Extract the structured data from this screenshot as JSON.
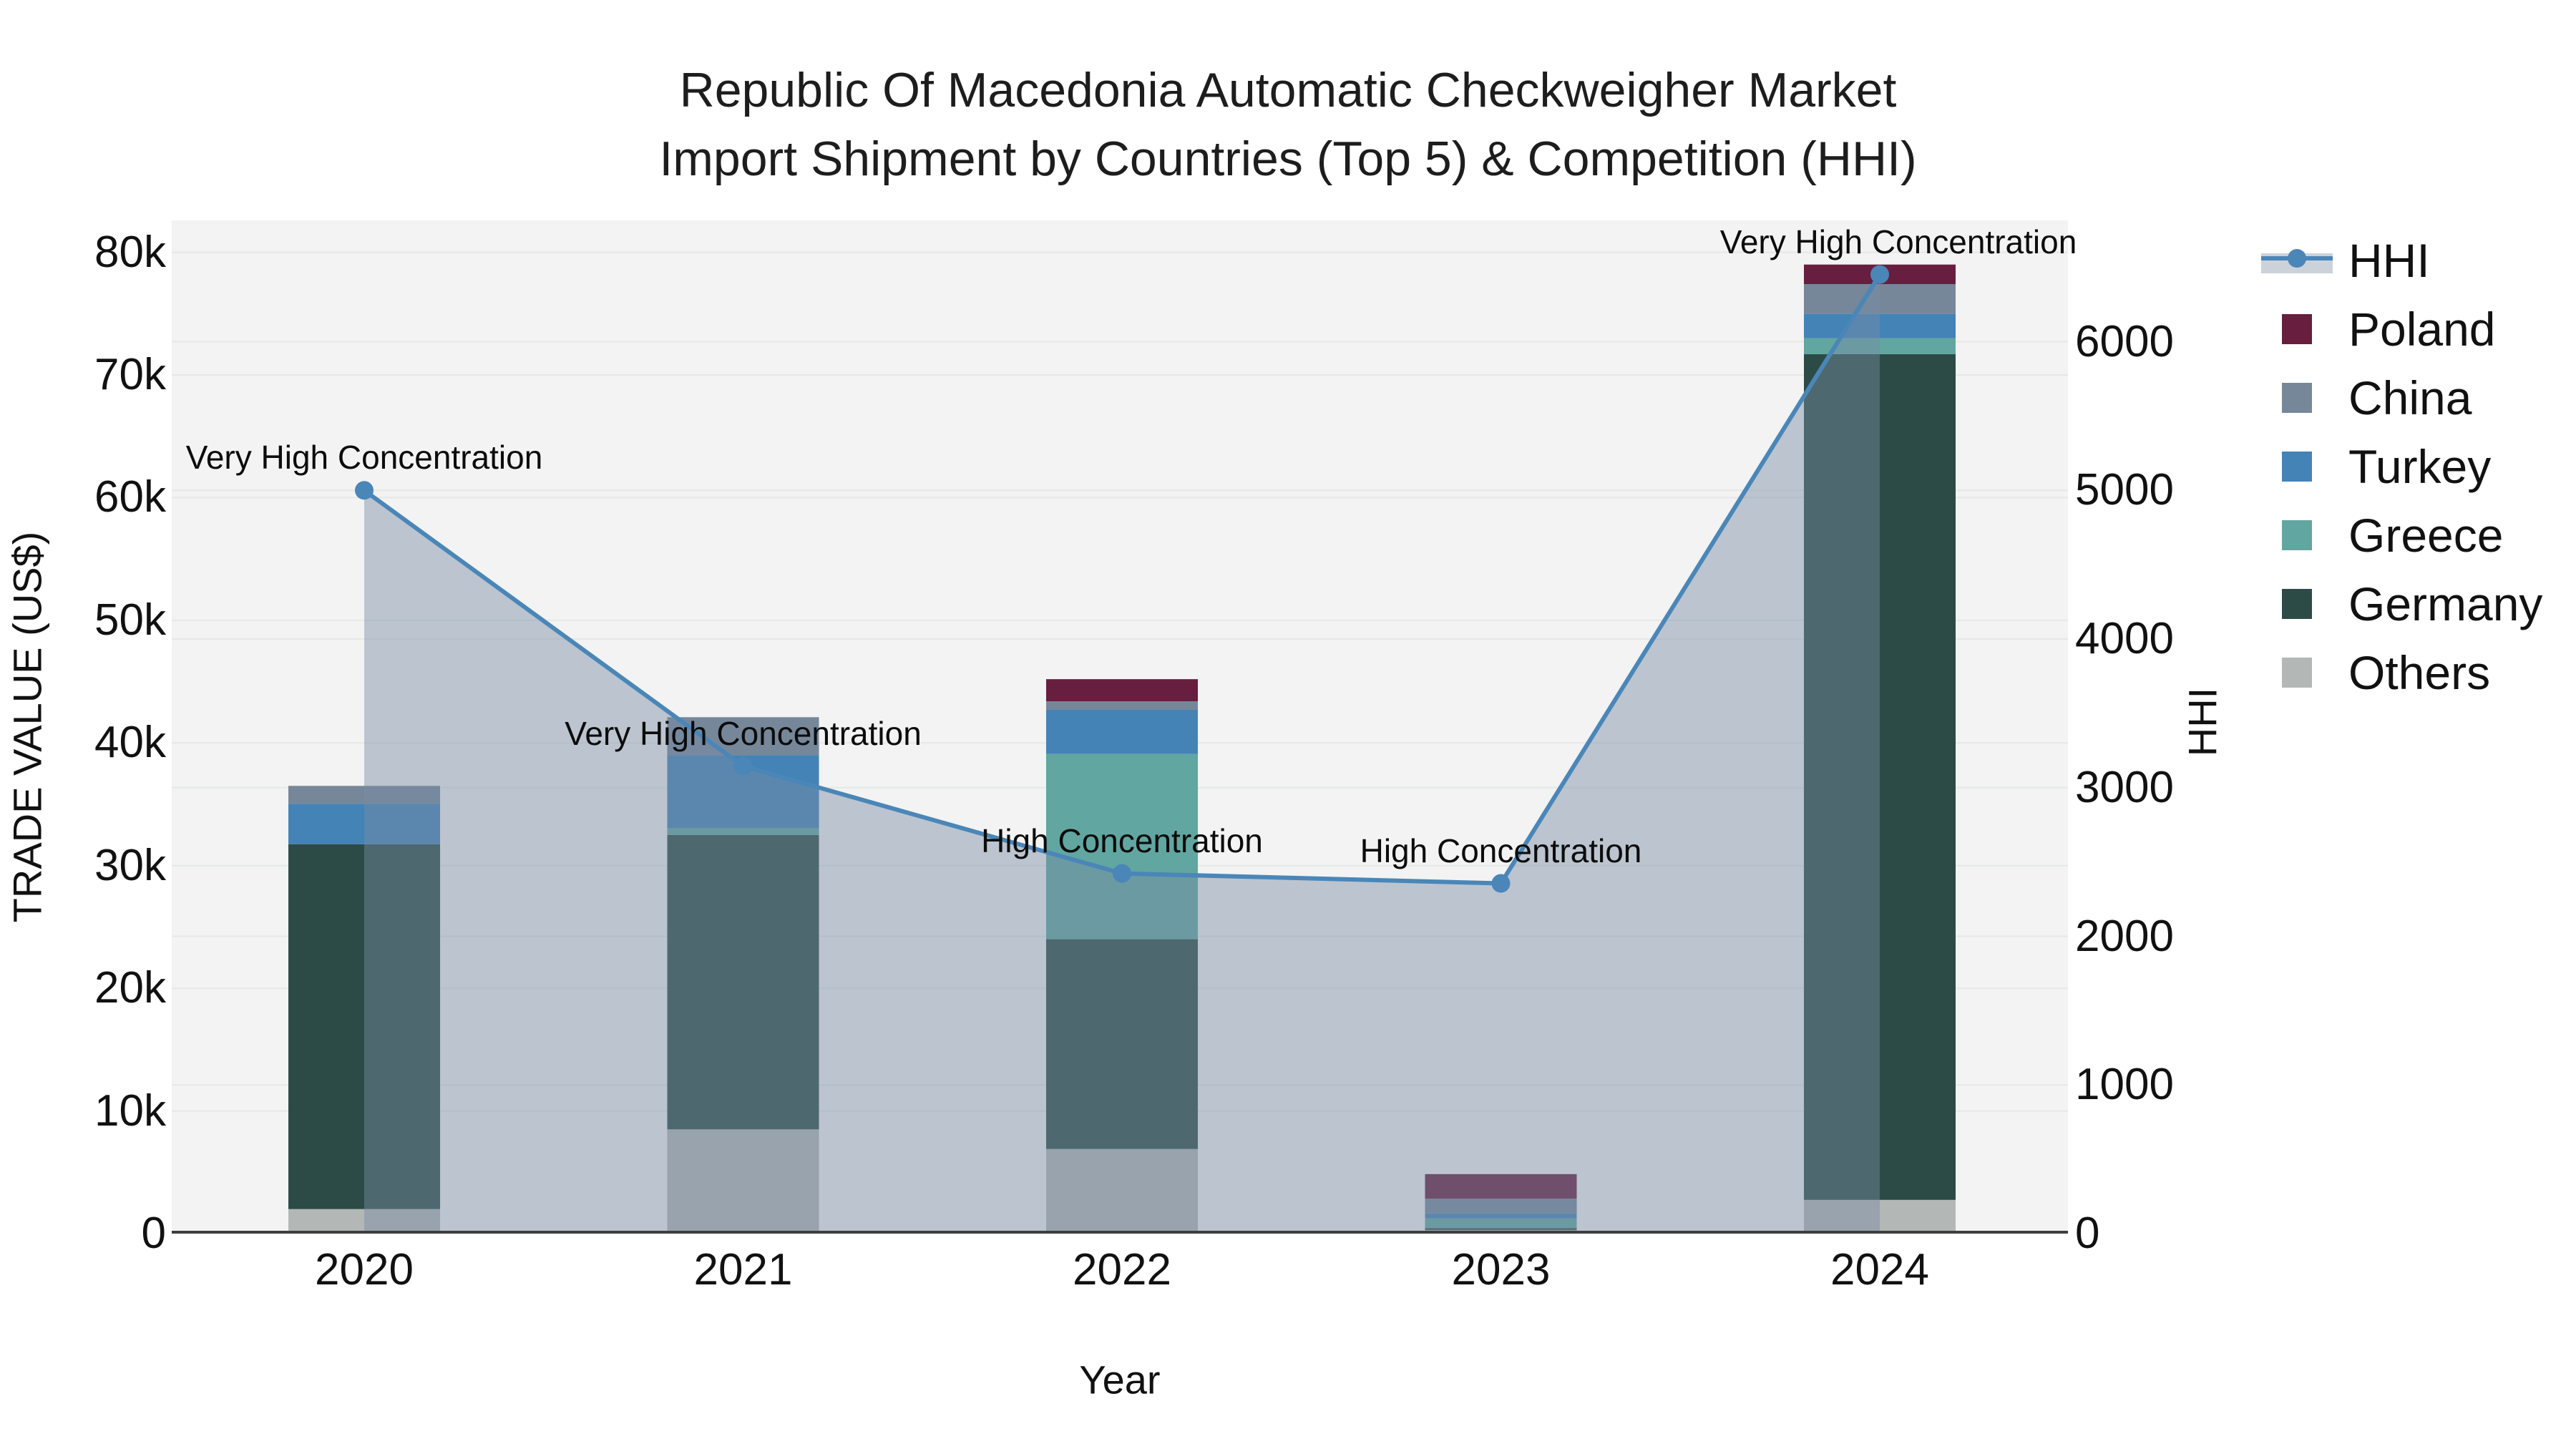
{
  "title": {
    "line1": "Republic Of Macedonia Automatic Checkweigher Market",
    "line2": "Import Shipment by Countries (Top 5) & Competition (HHI)"
  },
  "axes": {
    "x_title": "Year",
    "y_left_title": "TRADE VALUE (US$)",
    "y_right_title": "HHI"
  },
  "legend": {
    "items": [
      {
        "label": "HHI",
        "swatch": "line",
        "color": "#4a86b8"
      },
      {
        "label": "Poland",
        "swatch": "square",
        "color": "#681e3e"
      },
      {
        "label": "China",
        "swatch": "square",
        "color": "#76879a"
      },
      {
        "label": "Turkey",
        "swatch": "square",
        "color": "#4483b6"
      },
      {
        "label": "Greece",
        "swatch": "square",
        "color": "#61a6a0"
      },
      {
        "label": "Germany",
        "swatch": "square",
        "color": "#2d4b46"
      },
      {
        "label": "Others",
        "swatch": "square",
        "color": "#b3b7b6"
      }
    ]
  },
  "colors": {
    "plot_background": "#f2f3f2",
    "gridline": "#e6e8e7",
    "axis_line": "#3d3f3f",
    "hhi_line": "#4a86b8",
    "hhi_area_fill": "rgba(120,140,165,0.45)"
  },
  "chart_data": {
    "type": "bar+line",
    "title": "Republic Of Macedonia Automatic Checkweigher Market Import Shipment by Countries (Top 5) & Competition (HHI)",
    "categories": [
      "2020",
      "2021",
      "2022",
      "2023",
      "2024"
    ],
    "xlabel": "Year",
    "ylabel_left": "TRADE VALUE (US$)",
    "ylabel_right": "HHI",
    "stacked": true,
    "grid": true,
    "legend_position": "top-right",
    "series": [
      {
        "name": "Others",
        "color": "#b3b7b6",
        "values": [
          2000,
          8500,
          6900,
          300,
          2750
        ]
      },
      {
        "name": "Germany",
        "color": "#2d4b46",
        "values": [
          29750,
          24000,
          17100,
          150,
          68950
        ]
      },
      {
        "name": "Greece",
        "color": "#61a6a0",
        "values": [
          0,
          550,
          15100,
          800,
          1300
        ]
      },
      {
        "name": "Turkey",
        "color": "#4483b6",
        "values": [
          3300,
          5950,
          3600,
          400,
          2000
        ]
      },
      {
        "name": "China",
        "color": "#76879a",
        "values": [
          1450,
          3100,
          700,
          1200,
          2400
        ]
      },
      {
        "name": "Poland",
        "color": "#681e3e",
        "values": [
          0,
          0,
          1800,
          2000,
          1600
        ]
      }
    ],
    "bar_totals": [
      36500,
      42100,
      45200,
      4850,
      79000
    ],
    "line": {
      "name": "HHI",
      "axis": "right",
      "color": "#4a86b8",
      "values": [
        5000,
        3145,
        2423,
        2356,
        6452
      ],
      "area_fill": "rgba(120,140,165,0.45)"
    },
    "annotations": [
      {
        "category": "2020",
        "text": "Very High Concentration",
        "dx": 0
      },
      {
        "category": "2021",
        "text": "Very High Concentration",
        "dx": 0
      },
      {
        "category": "2022",
        "text": "High Concentration",
        "dx": 0
      },
      {
        "category": "2023",
        "text": "High Concentration",
        "dx": 0
      },
      {
        "category": "2024",
        "text": "Very High Concentration",
        "dx": 26
      }
    ],
    "ylim_left": [
      0,
      82600
    ],
    "ylim_right": [
      0,
      6816
    ],
    "yticks_left": {
      "values": [
        0,
        10000,
        20000,
        30000,
        40000,
        50000,
        60000,
        70000,
        80000
      ],
      "labels": [
        "0",
        "10k",
        "20k",
        "30k",
        "40k",
        "50k",
        "60k",
        "70k",
        "80k"
      ]
    },
    "yticks_right": {
      "values": [
        0,
        1000,
        2000,
        3000,
        4000,
        5000,
        6000
      ],
      "labels": [
        "0",
        "1000",
        "2000",
        "3000",
        "4000",
        "5000",
        "6000"
      ]
    }
  }
}
